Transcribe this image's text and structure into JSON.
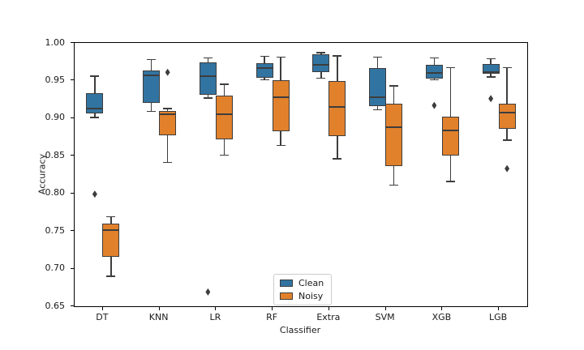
{
  "chart_data": {
    "type": "boxplot",
    "title": "",
    "xlabel": "Classifier",
    "ylabel": "Accuracy",
    "ylim": [
      0.65,
      1.0
    ],
    "yticks": [
      "0.65",
      "0.70",
      "0.75",
      "0.80",
      "0.85",
      "0.90",
      "0.95",
      "1.00"
    ],
    "categories": [
      "DT",
      "KNN",
      "LR",
      "RF",
      "Extra",
      "SVM",
      "XGB",
      "LGB"
    ],
    "grid": false,
    "colors": {
      "edge": "#3d3d3d",
      "spine": "#000000",
      "text": "#1a1a1a",
      "background": "#ffffff",
      "legend_border": "#cccccc"
    },
    "legend": {
      "position": "lower center",
      "entries": [
        {
          "label": "Clean",
          "color": "#3274a1"
        },
        {
          "label": "Noisy",
          "color": "#e1812c"
        }
      ]
    },
    "series": [
      {
        "name": "Clean",
        "color": "#3274a1",
        "boxes": [
          {
            "category": "DT",
            "whislo": 0.901,
            "q1": 0.906,
            "med": 0.913,
            "q3": 0.933,
            "whishi": 0.956,
            "fliers": [
              0.799
            ]
          },
          {
            "category": "KNN",
            "whislo": 0.909,
            "q1": 0.92,
            "med": 0.957,
            "q3": 0.963,
            "whishi": 0.978,
            "fliers": []
          },
          {
            "category": "LR",
            "whislo": 0.927,
            "q1": 0.931,
            "med": 0.956,
            "q3": 0.974,
            "whishi": 0.98,
            "fliers": [
              0.669
            ]
          },
          {
            "category": "RF",
            "whislo": 0.951,
            "q1": 0.954,
            "med": 0.967,
            "q3": 0.973,
            "whishi": 0.982,
            "fliers": []
          },
          {
            "category": "Extra",
            "whislo": 0.953,
            "q1": 0.961,
            "med": 0.971,
            "q3": 0.985,
            "whishi": 0.987,
            "fliers": []
          },
          {
            "category": "SVM",
            "whislo": 0.911,
            "q1": 0.916,
            "med": 0.928,
            "q3": 0.967,
            "whishi": 0.981,
            "fliers": []
          },
          {
            "category": "XGB",
            "whislo": 0.951,
            "q1": 0.953,
            "med": 0.96,
            "q3": 0.971,
            "whishi": 0.98,
            "fliers": [
              0.917
            ]
          },
          {
            "category": "LGB",
            "whislo": 0.955,
            "q1": 0.959,
            "med": 0.961,
            "q3": 0.972,
            "whishi": 0.979,
            "fliers": [
              0.926
            ]
          }
        ]
      },
      {
        "name": "Noisy",
        "color": "#e1812c",
        "boxes": [
          {
            "category": "DT",
            "whislo": 0.69,
            "q1": 0.716,
            "med": 0.751,
            "q3": 0.76,
            "whishi": 0.769,
            "fliers": []
          },
          {
            "category": "KNN",
            "whislo": 0.841,
            "q1": 0.877,
            "med": 0.905,
            "q3": 0.91,
            "whishi": 0.913,
            "fliers": [
              0.961
            ]
          },
          {
            "category": "LR",
            "whislo": 0.851,
            "q1": 0.872,
            "med": 0.905,
            "q3": 0.93,
            "whishi": 0.945,
            "fliers": []
          },
          {
            "category": "RF",
            "whislo": 0.864,
            "q1": 0.883,
            "med": 0.928,
            "q3": 0.95,
            "whishi": 0.981,
            "fliers": []
          },
          {
            "category": "Extra",
            "whislo": 0.846,
            "q1": 0.876,
            "med": 0.915,
            "q3": 0.949,
            "whishi": 0.983,
            "fliers": []
          },
          {
            "category": "SVM",
            "whislo": 0.811,
            "q1": 0.836,
            "med": 0.888,
            "q3": 0.919,
            "whishi": 0.943,
            "fliers": []
          },
          {
            "category": "XGB",
            "whislo": 0.816,
            "q1": 0.85,
            "med": 0.884,
            "q3": 0.902,
            "whishi": 0.967,
            "fliers": []
          },
          {
            "category": "LGB",
            "whislo": 0.871,
            "q1": 0.886,
            "med": 0.907,
            "q3": 0.919,
            "whishi": 0.967,
            "fliers": [
              0.833
            ]
          }
        ]
      }
    ]
  }
}
